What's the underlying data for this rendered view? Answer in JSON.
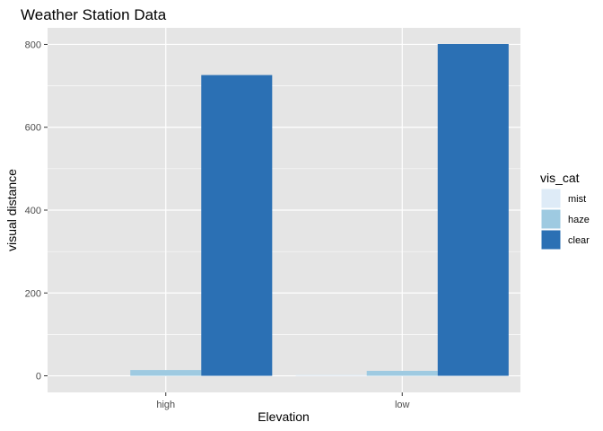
{
  "chart_data": {
    "type": "bar",
    "title": "Weather Station Data",
    "xlabel": "Elevation",
    "ylabel": "visual distance",
    "categories": [
      "high",
      "low"
    ],
    "series": [
      {
        "name": "mist",
        "values": [
          0,
          2
        ],
        "color": "#deebf7"
      },
      {
        "name": "haze",
        "values": [
          14,
          12
        ],
        "color": "#9ecae1"
      },
      {
        "name": "clear",
        "values": [
          726,
          801
        ],
        "color": "#2b70b4"
      }
    ],
    "ylim": [
      -40,
      840
    ],
    "yticks": [
      0,
      200,
      400,
      600,
      800
    ],
    "grid": true,
    "legend": {
      "title": "vis_cat",
      "position": "right"
    },
    "panel_color": "#e5e5e5",
    "grid_color": "#ffffff"
  }
}
